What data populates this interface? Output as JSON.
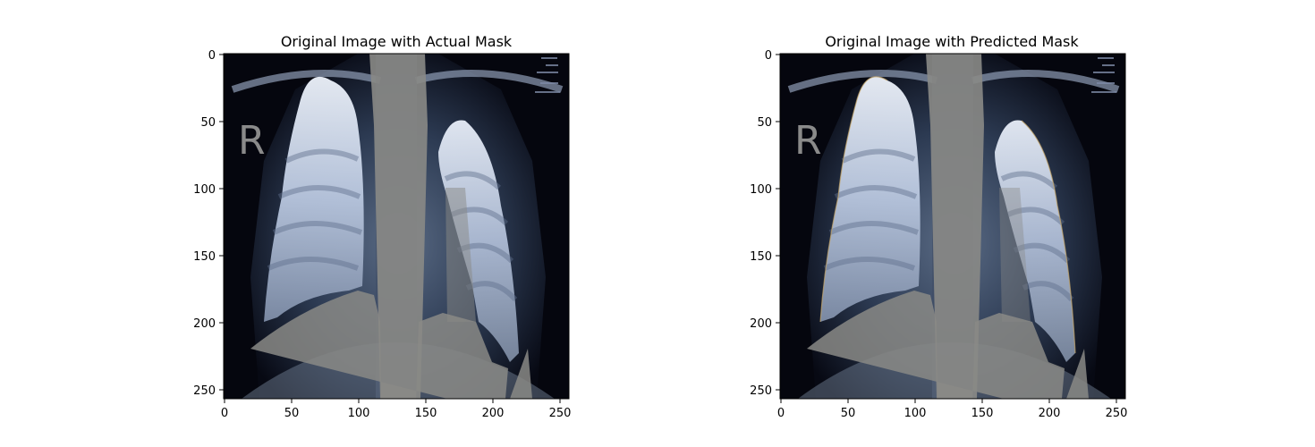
{
  "figure": {
    "panels": [
      {
        "title": "Original Image with Actual Mask",
        "xticks": [
          "0",
          "50",
          "100",
          "150",
          "200",
          "250"
        ],
        "yticks": [
          "0",
          "50",
          "100",
          "150",
          "200",
          "250"
        ]
      },
      {
        "title": "Original Image with Predicted Mask",
        "xticks": [
          "0",
          "50",
          "100",
          "150",
          "200",
          "250"
        ],
        "yticks": [
          "0",
          "50",
          "100",
          "150",
          "200",
          "250"
        ]
      }
    ],
    "image_marker": "R",
    "xlim": [
      0,
      256
    ],
    "ylim": [
      256,
      0
    ],
    "colors": {
      "background": "#ffffff",
      "image_dark": "#05060e",
      "body_tone": "#2a3850",
      "mask_overlay": "#8a8a86",
      "lung_highlight": "#e0e8f5"
    }
  }
}
